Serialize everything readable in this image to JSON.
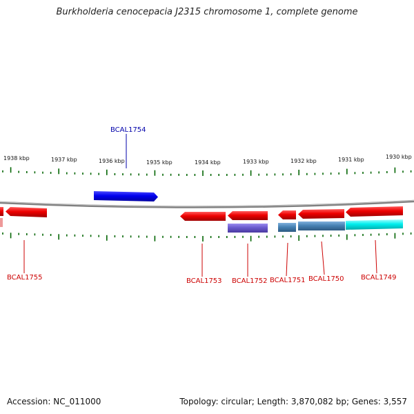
{
  "map": {
    "title": "Burkholderia cenocepacia J2315 chromosome 1, complete genome",
    "footer": {
      "accession": "Accession: NC_011000",
      "summary": "Topology: circular; Length: 3,870,082 bp; Genes: 3,557"
    }
  },
  "scale": {
    "ticks_kbp": [
      "1938 kbp",
      "1937 kbp",
      "1936 kbp",
      "1935 kbp",
      "1934 kbp",
      "1933 kbp",
      "1932 kbp",
      "1931 kbp",
      "1930 kbp"
    ]
  },
  "genes": [
    {
      "id": "BCAL1754",
      "strand": "+",
      "color": "#0000ee",
      "label_color": "#0000aa"
    },
    {
      "id": "BCAL1755",
      "strand": "-",
      "color": "#ee0000",
      "label_color": "#cc0000"
    },
    {
      "id": "BCAL1753",
      "strand": "-",
      "color": "#ee0000",
      "label_color": "#cc0000"
    },
    {
      "id": "BCAL1752",
      "strand": "-",
      "color": "#ee0000",
      "label_color": "#cc0000"
    },
    {
      "id": "BCAL1751",
      "strand": "-",
      "color": "#ee0000",
      "label_color": "#cc0000"
    },
    {
      "id": "BCAL1750",
      "strand": "-",
      "color": "#ee0000",
      "label_color": "#cc0000"
    },
    {
      "id": "BCAL1749",
      "strand": "-",
      "color": "#ee0000",
      "label_color": "#cc0000"
    }
  ],
  "features": [
    {
      "type": "feature",
      "color": "#6a5acd"
    },
    {
      "type": "feature",
      "color": "#4682b4"
    },
    {
      "type": "feature",
      "color": "#4682b4"
    },
    {
      "type": "feature",
      "color": "#00eeee"
    }
  ],
  "colors": {
    "backbone": "#808080",
    "ticks": "#006400"
  }
}
